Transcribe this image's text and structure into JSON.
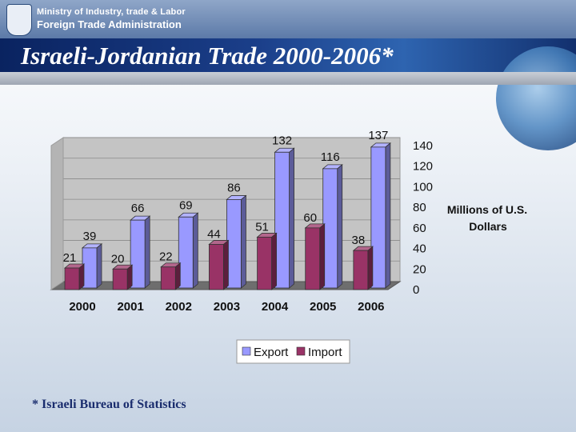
{
  "header": {
    "ministry": "Ministry of Industry, trade & Labor",
    "administration": "Foreign Trade Administration"
  },
  "title": "Israeli-Jordanian Trade 2000-2006*",
  "footnote": "* Israeli Bureau of Statistics",
  "colors": {
    "export": "#9999ff",
    "import": "#993366",
    "title_text": "#ffffff",
    "footnote_text": "#1a2d6e"
  },
  "chart_data": {
    "type": "bar",
    "categories": [
      "2000",
      "2001",
      "2002",
      "2003",
      "2004",
      "2005",
      "2006"
    ],
    "series": [
      {
        "name": "Export",
        "values": [
          39,
          66,
          69,
          86,
          132,
          116,
          137
        ]
      },
      {
        "name": "Import",
        "values": [
          21,
          20,
          22,
          44,
          51,
          60,
          38
        ]
      }
    ],
    "ylabel": "Millions of U.S. Dollars",
    "ylim": [
      0,
      140
    ],
    "yticks": [
      0,
      20,
      40,
      60,
      80,
      100,
      120,
      140
    ],
    "grid": true,
    "legend_position": "bottom",
    "style": "3d-clustered-column"
  }
}
